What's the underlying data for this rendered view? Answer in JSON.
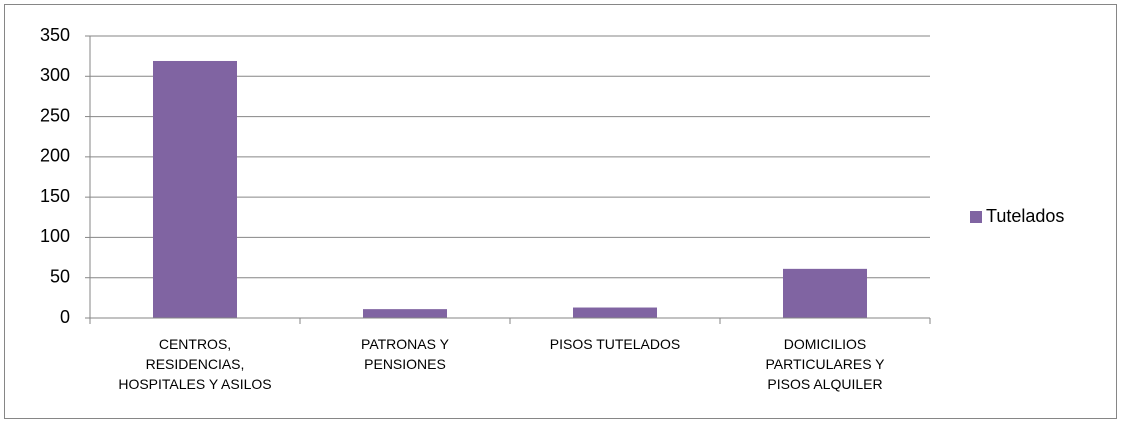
{
  "chart_data": {
    "type": "bar",
    "categories": [
      "CENTROS, RESIDENCIAS, HOSPITALES Y ASILOS",
      "PATRONAS Y PENSIONES",
      "PISOS TUTELADOS",
      "DOMICILIOS PARTICULARES Y PISOS ALQUILER"
    ],
    "series": [
      {
        "name": "Tutelados",
        "color": "#8064a2",
        "values": [
          319,
          11,
          13,
          61
        ]
      }
    ],
    "ylim": [
      0,
      350
    ],
    "yticks": [
      0,
      50,
      100,
      150,
      200,
      250,
      300,
      350
    ],
    "grid": true,
    "legend": "right"
  }
}
